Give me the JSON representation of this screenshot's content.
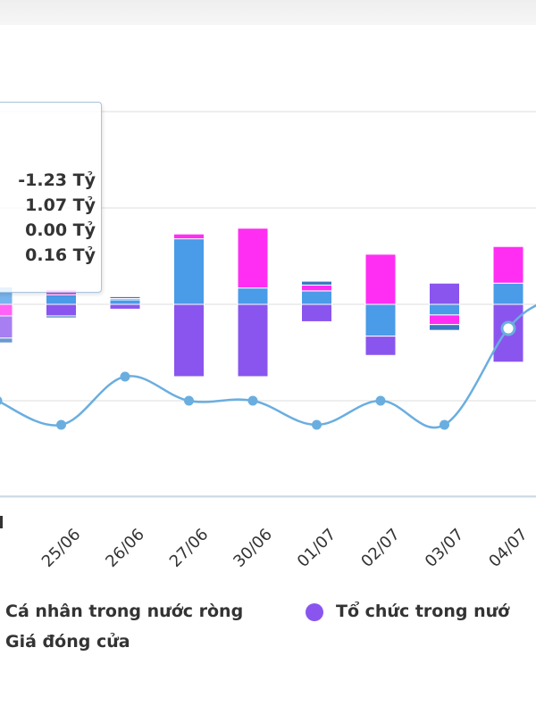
{
  "chart_data": {
    "type": "bar",
    "categories": [
      "",
      "25/06",
      "26/06",
      "27/06",
      "30/06",
      "01/07",
      "02/07",
      "03/07",
      "04/07"
    ],
    "series": [
      {
        "color": "#4a9be8",
        "values": [
          0.18,
          0.1,
          0.05,
          0.68,
          0.17,
          0.14,
          -0.33,
          -0.11,
          0.22
        ]
      },
      {
        "name": "Cá nhân trong nước ròng",
        "color": "#ff2ef2",
        "values": [
          -0.12,
          0.05,
          0.01,
          0.05,
          0.62,
          0.06,
          0.52,
          -0.1,
          0.38
        ]
      },
      {
        "name": "Tổ chức trong nước",
        "color": "#8a55ee",
        "values": [
          -0.23,
          -0.12,
          -0.05,
          -0.75,
          -0.75,
          -0.18,
          -0.2,
          0.22,
          -0.6
        ]
      },
      {
        "color": "#3a78c0",
        "values": [
          -0.05,
          -0.02,
          0.02,
          0.0,
          0.0,
          0.04,
          0.0,
          -0.06,
          0.0
        ]
      }
    ],
    "line": {
      "name": "Giá đóng cửa",
      "color": "#6aaee0",
      "values": [
        -1.0,
        -1.25,
        -0.75,
        -1.0,
        -1.0,
        -1.25,
        -1.0,
        -1.25,
        -0.25
      ],
      "tail_value": 0.05
    },
    "ylim": [
      -2.0,
      2.0
    ],
    "grid": true,
    "legend_placement": "bottom"
  },
  "tooltip": {
    "rows": [
      "-1.23 Tỷ",
      "1.07 Tỷ",
      "0.00 Tỷ",
      "0.16 Tỷ"
    ]
  },
  "legend": {
    "item1": "Cá nhân trong nước ròng",
    "item2": "Tổ chức trong nướ",
    "item3": "Giá đóng cửa"
  }
}
